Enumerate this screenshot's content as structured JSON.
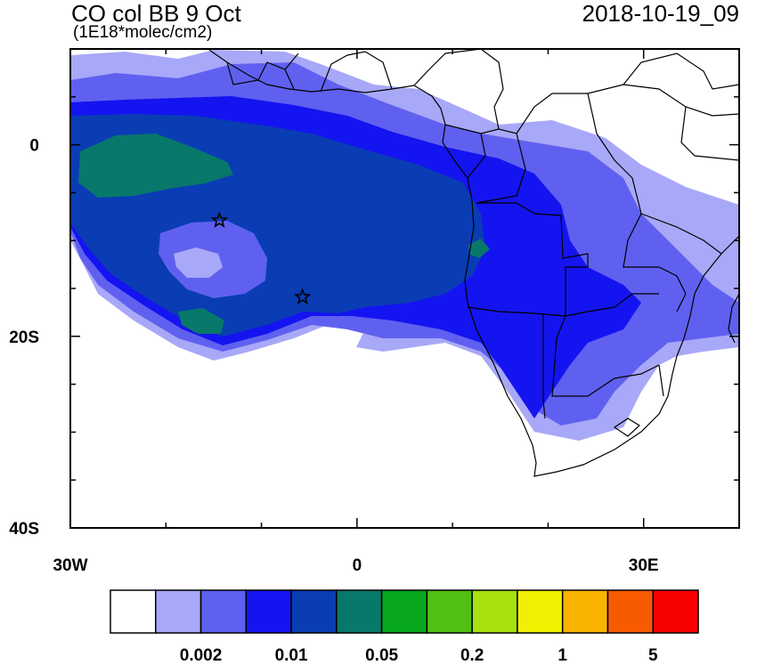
{
  "header": {
    "title": "CO col BB 9 Oct",
    "units": "(1E18*molec/cm2)",
    "timestamp": "2018-10-19_09"
  },
  "map": {
    "lon_range": [
      -30,
      40
    ],
    "lat_range": [
      -40,
      10
    ],
    "lat_ticks": [
      {
        "value": 0,
        "label": "0"
      },
      {
        "value": -20,
        "label": "20S"
      },
      {
        "value": -40,
        "label": "40S"
      }
    ],
    "lon_ticks": [
      {
        "value": -30,
        "label": "30W"
      },
      {
        "value": 0,
        "label": "0"
      },
      {
        "value": 30,
        "label": "30E"
      }
    ],
    "markers": [
      {
        "name": "star",
        "lon": -14.4,
        "lat": -7.9
      },
      {
        "name": "star",
        "lon": -5.7,
        "lat": -15.9
      }
    ]
  },
  "colorbar": {
    "colors": [
      "#ffffff",
      "#a8a8f8",
      "#6060f0",
      "#1414f0",
      "#0a3cb4",
      "#08786a",
      "#08a81e",
      "#50c014",
      "#a8e010",
      "#f0f000",
      "#f8b400",
      "#f85a00",
      "#f80000"
    ],
    "labels": [
      {
        "after_box": 2,
        "text": "0.002"
      },
      {
        "after_box": 4,
        "text": "0.01"
      },
      {
        "after_box": 6,
        "text": "0.05"
      },
      {
        "after_box": 8,
        "text": "0.2"
      },
      {
        "after_box": 10,
        "text": "1"
      },
      {
        "after_box": 12,
        "text": "5"
      }
    ]
  }
}
